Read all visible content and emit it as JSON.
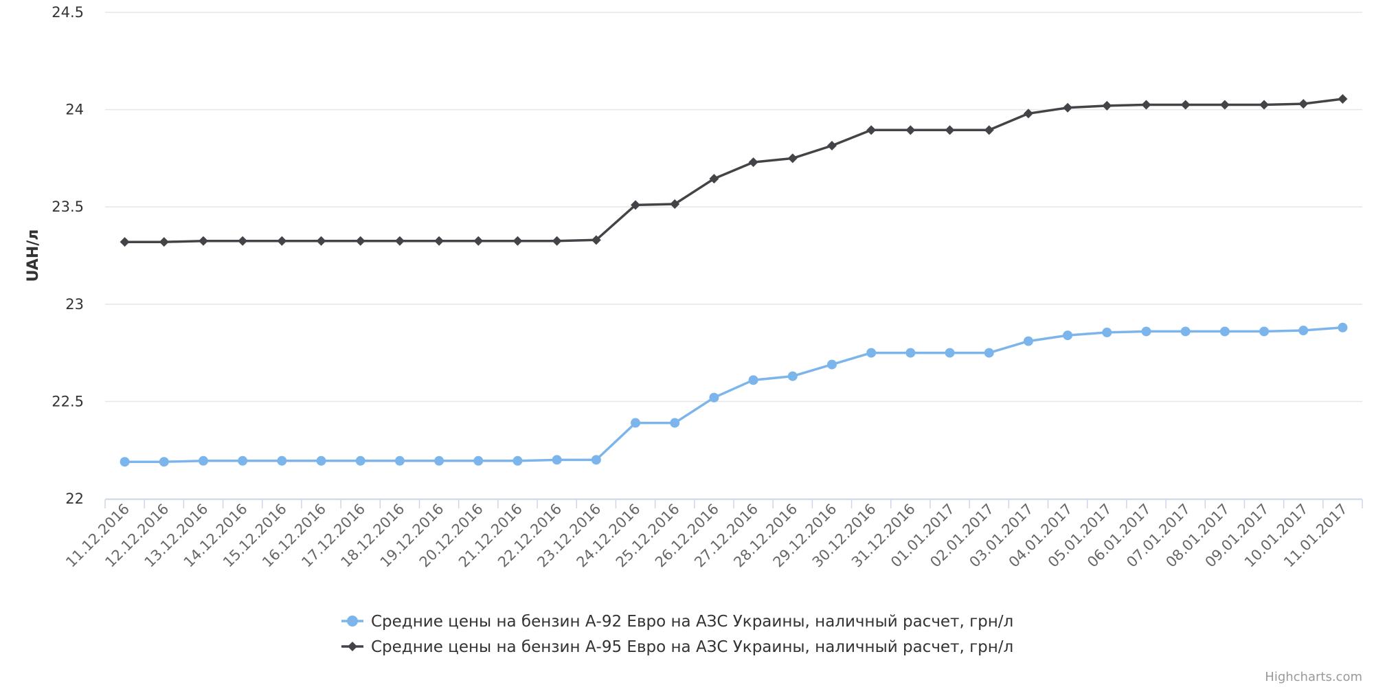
{
  "chart_data": {
    "type": "line",
    "categories": [
      "11.12.2016",
      "12.12.2016",
      "13.12.2016",
      "14.12.2016",
      "15.12.2016",
      "16.12.2016",
      "17.12.2016",
      "18.12.2016",
      "19.12.2016",
      "20.12.2016",
      "21.12.2016",
      "22.12.2016",
      "23.12.2016",
      "24.12.2016",
      "25.12.2016",
      "26.12.2016",
      "27.12.2016",
      "28.12.2016",
      "29.12.2016",
      "30.12.2016",
      "31.12.2016",
      "01.01.2017",
      "02.01.2017",
      "03.01.2017",
      "04.01.2017",
      "05.01.2017",
      "06.01.2017",
      "07.01.2017",
      "08.01.2017",
      "09.01.2017",
      "10.01.2017",
      "11.01.2017"
    ],
    "series": [
      {
        "name": "Средние цены на бензин А-92 Евро на АЗС Украины, наличный расчет, грн/л",
        "color": "#7cb5ec",
        "marker": "circle",
        "values": [
          22.19,
          22.19,
          22.195,
          22.195,
          22.195,
          22.195,
          22.195,
          22.195,
          22.195,
          22.195,
          22.195,
          22.2,
          22.2,
          22.39,
          22.39,
          22.52,
          22.61,
          22.63,
          22.69,
          22.75,
          22.75,
          22.75,
          22.75,
          22.81,
          22.84,
          22.855,
          22.86,
          22.86,
          22.86,
          22.86,
          22.865,
          22.88
        ]
      },
      {
        "name": "Средние цены на бензин А-95 Евро на АЗС Украины, наличный расчет, грн/л",
        "color": "#434348",
        "marker": "diamond",
        "values": [
          23.32,
          23.32,
          23.325,
          23.325,
          23.325,
          23.325,
          23.325,
          23.325,
          23.325,
          23.325,
          23.325,
          23.325,
          23.33,
          23.51,
          23.515,
          23.645,
          23.73,
          23.75,
          23.815,
          23.895,
          23.895,
          23.895,
          23.895,
          23.98,
          24.01,
          24.02,
          24.025,
          24.025,
          24.025,
          24.025,
          24.03,
          24.055
        ]
      }
    ],
    "y_ticks": [
      "22",
      "22.5",
      "23",
      "23.5",
      "24",
      "24.5"
    ],
    "ylim": [
      22,
      24.5
    ],
    "xlabel": "",
    "ylabel": "UAH/л",
    "grid": true,
    "legend_position": "bottom-center",
    "credits": "Highcharts.com"
  }
}
